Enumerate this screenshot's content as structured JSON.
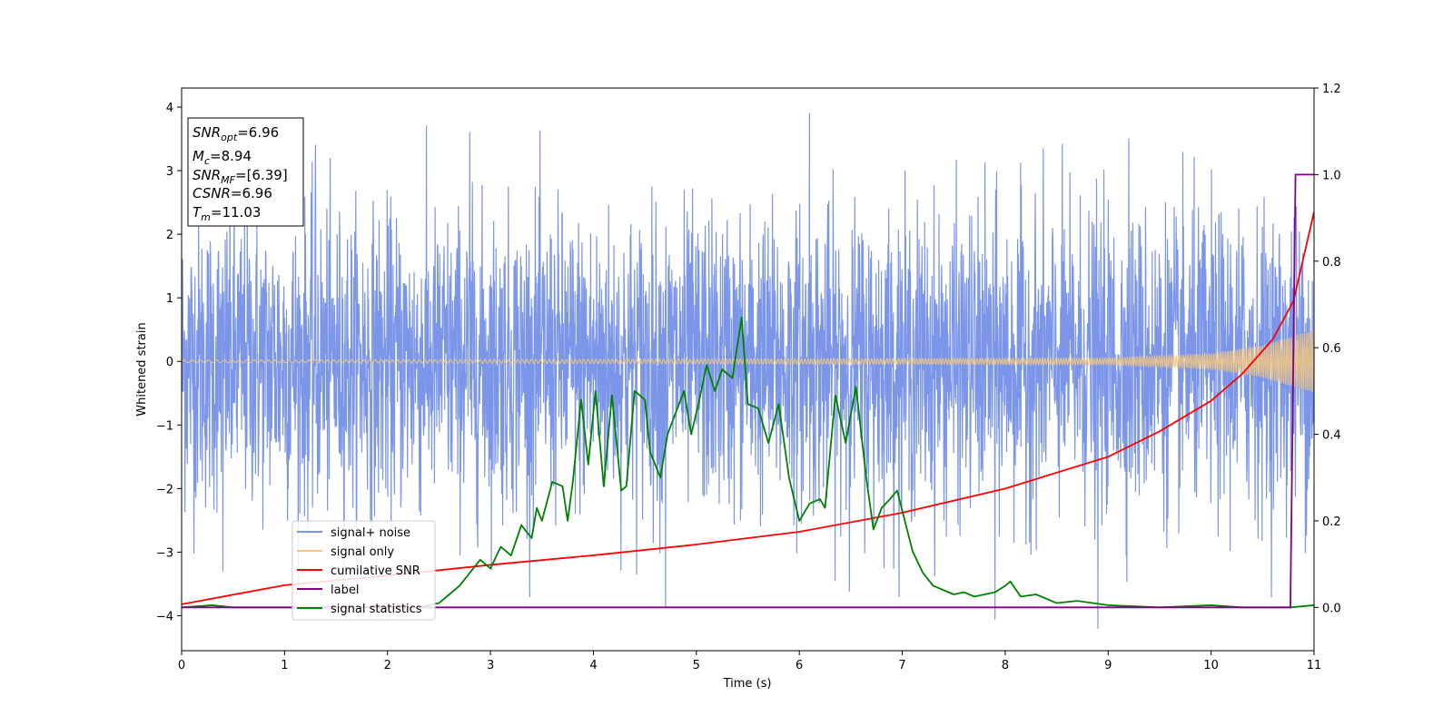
{
  "chart_data": {
    "type": "line",
    "xlabel": "Time (s)",
    "ylabel_left": "Whitened strain",
    "xlim": [
      0,
      11
    ],
    "ylim_left": [
      -4.55,
      4.3
    ],
    "ylim_right": [
      -0.1,
      1.2
    ],
    "x_ticks": [
      0,
      1,
      2,
      3,
      4,
      5,
      6,
      7,
      8,
      9,
      10,
      11
    ],
    "y_ticks_left": [
      -4,
      -3,
      -2,
      -1,
      0,
      1,
      2,
      3,
      4
    ],
    "y_ticks_right": [
      0.0,
      0.2,
      0.4,
      0.6,
      0.8,
      1.0,
      1.2
    ],
    "y_tick_labels_left": [
      "−4",
      "−3",
      "−2",
      "−1",
      "0",
      "1",
      "2",
      "3",
      "4"
    ],
    "y_tick_labels_right": [
      "0.0",
      "0.2",
      "0.4",
      "0.6",
      "0.8",
      "1.0",
      "1.2"
    ],
    "grid": false,
    "legend_placement": "lower-left",
    "annotation_box": {
      "placement": "top-left",
      "lines": [
        {
          "base": "SNR",
          "sub": "opt",
          "value": "=6.96"
        },
        {
          "base": "M",
          "sub": "c",
          "value": "=8.94"
        },
        {
          "base": "SNR",
          "sub": "MF",
          "value": "=[6.39]"
        },
        {
          "base": "CSNR",
          "sub": "",
          "value": "=6.96"
        },
        {
          "base": "T",
          "sub": "m",
          "value": "=11.03"
        }
      ]
    },
    "series": [
      {
        "name": "signal+ noise",
        "color": "#7b96e8",
        "axis": "left",
        "description": "whitened noisy strain, approx. gaussian noise with sigma ~1.2 spanning x 0 to 11",
        "peaks": [
          {
            "x": 0.4,
            "y": -3.3
          },
          {
            "x": 1.3,
            "y": 3.4
          },
          {
            "x": 2.8,
            "y": 3.6
          },
          {
            "x": 4.7,
            "y": -3.85
          },
          {
            "x": 6.1,
            "y": 3.9
          },
          {
            "x": 7.9,
            "y": -4.05
          },
          {
            "x": 8.9,
            "y": -4.2
          },
          {
            "x": 9.2,
            "y": 3.5
          }
        ]
      },
      {
        "name": "signal only",
        "color": "#f5c77e",
        "axis": "left",
        "description": "chirp signal with amplitude growing toward the end",
        "envelope": {
          "x": [
            0,
            9,
            10,
            10.5,
            11
          ],
          "amplitude": [
            0.02,
            0.05,
            0.12,
            0.25,
            0.5
          ]
        }
      },
      {
        "name": "cumilative SNR",
        "color": "#ff0000",
        "axis": "left",
        "x": [
          0,
          1,
          2,
          3,
          4,
          5,
          6,
          7,
          8,
          9,
          9.5,
          10,
          10.3,
          10.6,
          10.8,
          11
        ],
        "y": [
          -3.82,
          -3.52,
          -3.37,
          -3.2,
          -3.05,
          -2.88,
          -2.68,
          -2.38,
          -2.0,
          -1.5,
          -1.1,
          -0.62,
          -0.2,
          0.35,
          0.95,
          2.35
        ]
      },
      {
        "name": "label",
        "color": "#800080",
        "axis": "right",
        "x": [
          0,
          10.77,
          10.82,
          11
        ],
        "y": [
          0.0,
          0.0,
          1.0,
          1.0
        ]
      },
      {
        "name": "signal statistics",
        "color": "#008000",
        "axis": "right",
        "x": [
          0,
          0.3,
          0.5,
          1.0,
          1.5,
          2.0,
          2.3,
          2.5,
          2.6,
          2.7,
          2.8,
          2.9,
          3.0,
          3.1,
          3.2,
          3.3,
          3.4,
          3.45,
          3.5,
          3.6,
          3.7,
          3.75,
          3.8,
          3.88,
          3.95,
          4.02,
          4.1,
          4.18,
          4.27,
          4.32,
          4.4,
          4.5,
          4.55,
          4.65,
          4.72,
          4.8,
          4.88,
          4.95,
          5.02,
          5.1,
          5.18,
          5.25,
          5.35,
          5.44,
          5.5,
          5.6,
          5.7,
          5.8,
          5.9,
          6.0,
          6.1,
          6.2,
          6.25,
          6.35,
          6.45,
          6.55,
          6.65,
          6.72,
          6.8,
          6.88,
          6.95,
          7.1,
          7.2,
          7.3,
          7.5,
          7.6,
          7.7,
          7.9,
          8.0,
          8.05,
          8.15,
          8.3,
          8.5,
          8.7,
          9.0,
          9.5,
          10.0,
          10.3,
          10.77,
          11.0
        ],
        "y": [
          0.0,
          0.005,
          0.0,
          0.0,
          0.0,
          0.0,
          0.0,
          0.01,
          0.03,
          0.05,
          0.08,
          0.11,
          0.09,
          0.14,
          0.12,
          0.19,
          0.16,
          0.23,
          0.2,
          0.29,
          0.28,
          0.2,
          0.29,
          0.48,
          0.33,
          0.5,
          0.28,
          0.49,
          0.27,
          0.28,
          0.5,
          0.48,
          0.36,
          0.3,
          0.4,
          0.45,
          0.5,
          0.4,
          0.47,
          0.56,
          0.5,
          0.55,
          0.53,
          0.67,
          0.47,
          0.46,
          0.38,
          0.47,
          0.3,
          0.2,
          0.24,
          0.25,
          0.23,
          0.49,
          0.38,
          0.51,
          0.3,
          0.18,
          0.23,
          0.25,
          0.27,
          0.13,
          0.08,
          0.05,
          0.03,
          0.035,
          0.025,
          0.035,
          0.05,
          0.06,
          0.025,
          0.03,
          0.01,
          0.015,
          0.005,
          0.0,
          0.005,
          0.0,
          0.0,
          0.005
        ]
      }
    ]
  }
}
